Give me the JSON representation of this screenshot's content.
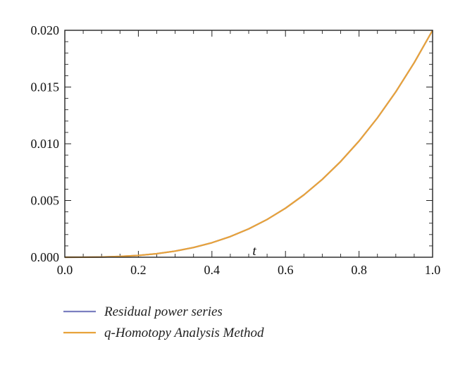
{
  "chart_data": {
    "type": "line",
    "xlabel": "t",
    "ylabel": "",
    "xlim": [
      0.0,
      1.0
    ],
    "ylim": [
      0.0,
      0.02
    ],
    "xticks": [
      "0.0",
      "0.2",
      "0.4",
      "0.6",
      "0.8",
      "1.0"
    ],
    "yticks": [
      "0.000",
      "0.005",
      "0.010",
      "0.015",
      "0.020"
    ],
    "x": [
      0.0,
      0.05,
      0.1,
      0.15,
      0.2,
      0.25,
      0.3,
      0.35,
      0.4,
      0.45,
      0.5,
      0.55,
      0.6,
      0.65,
      0.7,
      0.75,
      0.8,
      0.85,
      0.9,
      0.95,
      1.0
    ],
    "series": [
      {
        "name": "Residual power series",
        "color": "#7b7fc0",
        "values": [
          0.0,
          2.5e-06,
          2e-05,
          6.75e-05,
          0.00016,
          0.0003125,
          0.00054,
          0.0008575,
          0.00128,
          0.0018225,
          0.0025,
          0.0033275,
          0.00432,
          0.0054925,
          0.00686,
          0.0084375,
          0.01024,
          0.0122825,
          0.01458,
          0.0171475,
          0.02
        ]
      },
      {
        "name": "q-Homotopy Analysis Method",
        "color": "#e8a23a",
        "values": [
          0.0,
          2.5e-06,
          2e-05,
          6.75e-05,
          0.00016,
          0.0003125,
          0.00054,
          0.0008575,
          0.00128,
          0.0018225,
          0.0025,
          0.0033275,
          0.00432,
          0.0054925,
          0.00686,
          0.0084375,
          0.01024,
          0.0122825,
          0.01458,
          0.0171475,
          0.02
        ]
      }
    ],
    "grid": false,
    "legend_position": "bottom-left"
  }
}
